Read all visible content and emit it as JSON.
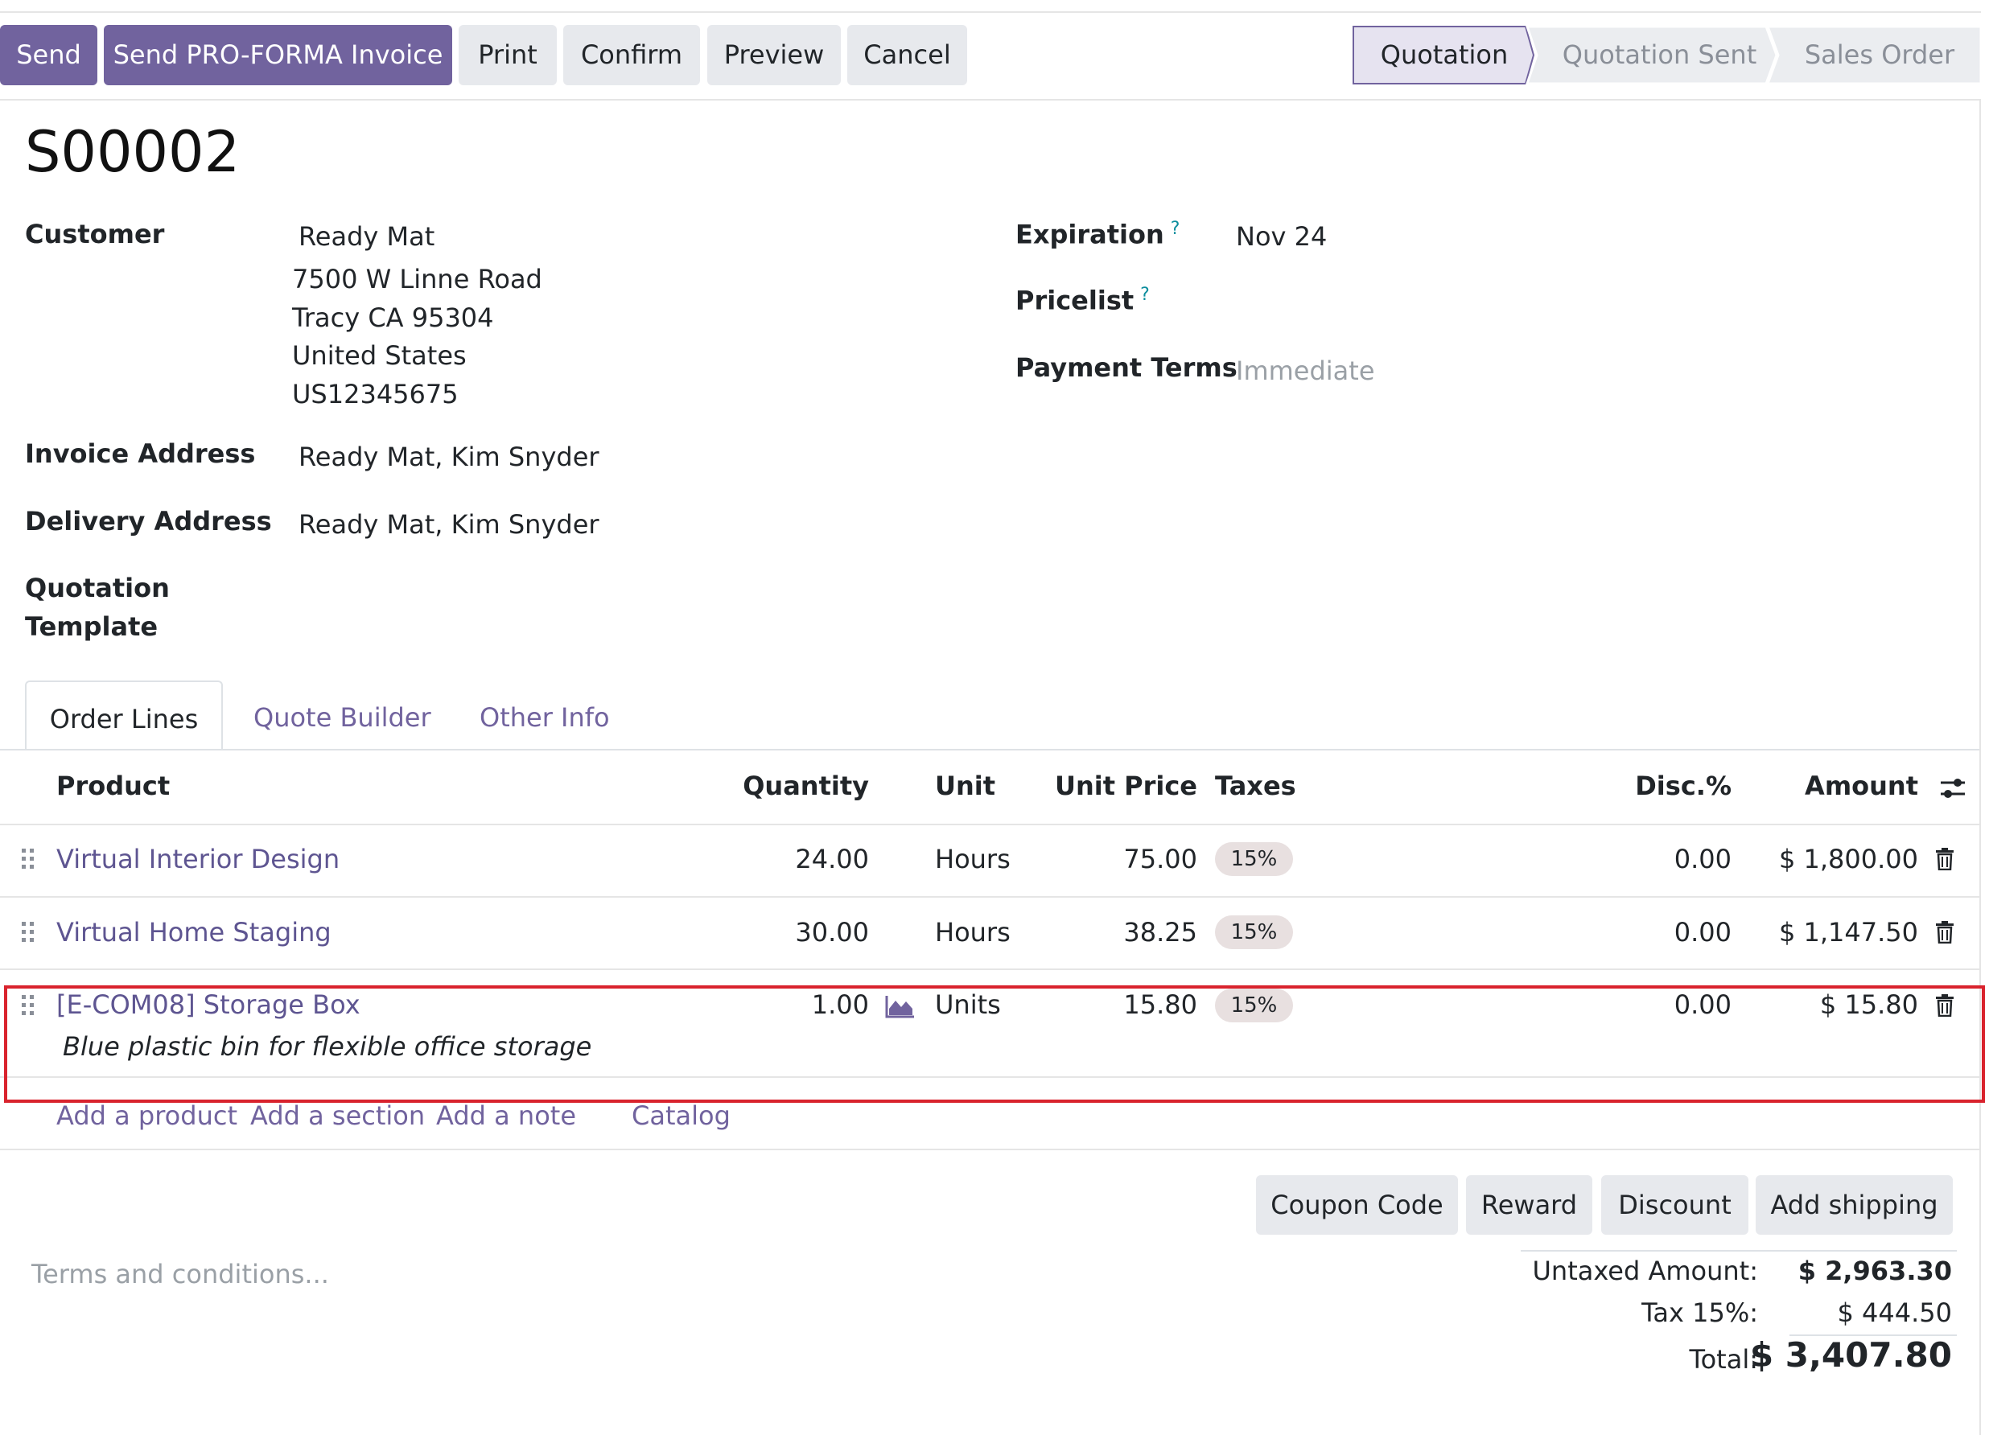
{
  "toolbar": {
    "send": "Send",
    "send_proforma": "Send PRO-FORMA Invoice",
    "print": "Print",
    "confirm": "Confirm",
    "preview": "Preview",
    "cancel": "Cancel"
  },
  "statusbar": {
    "quotation": "Quotation",
    "quotation_sent": "Quotation Sent",
    "sales_order": "Sales Order"
  },
  "record": {
    "title": "S00002",
    "customer_label": "Customer",
    "customer_name": "Ready Mat",
    "customer_address": [
      "7500 W Linne Road",
      "Tracy CA 95304",
      "United States",
      "US12345675"
    ],
    "invoice_address_label": "Invoice Address",
    "invoice_address": "Ready Mat, Kim Snyder",
    "delivery_address_label": "Delivery Address",
    "delivery_address": "Ready Mat, Kim Snyder",
    "quotation_template_label_1": "Quotation",
    "quotation_template_label_2": "Template",
    "expiration_label": "Expiration",
    "expiration_value": "Nov 24",
    "pricelist_label": "Pricelist",
    "payment_terms_label": "Payment Terms",
    "payment_terms_placeholder": "Immediate",
    "help_mark": "?"
  },
  "tabs": {
    "order_lines": "Order Lines",
    "quote_builder": "Quote Builder",
    "other_info": "Other Info"
  },
  "table": {
    "headers": {
      "product": "Product",
      "quantity": "Quantity",
      "unit": "Unit",
      "unit_price": "Unit Price",
      "taxes": "Taxes",
      "discount": "Disc.%",
      "amount": "Amount"
    },
    "rows": [
      {
        "product": "Virtual Interior Design",
        "quantity": "24.00",
        "unit": "Hours",
        "unit_price": "75.00",
        "tax": "15%",
        "discount": "0.00",
        "amount": "$ 1,800.00"
      },
      {
        "product": "Virtual Home Staging",
        "quantity": "30.00",
        "unit": "Hours",
        "unit_price": "38.25",
        "tax": "15%",
        "discount": "0.00",
        "amount": "$ 1,147.50"
      },
      {
        "product": "[E-COM08] Storage Box",
        "description": "Blue plastic bin for flexible office storage",
        "quantity": "1.00",
        "unit": "Units",
        "unit_price": "15.80",
        "tax": "15%",
        "discount": "0.00",
        "amount": "$ 15.80"
      }
    ],
    "add_product": "Add a product",
    "add_section": "Add a section",
    "add_note": "Add a note",
    "catalog": "Catalog"
  },
  "actions": {
    "coupon_code": "Coupon Code",
    "reward": "Reward",
    "discount": "Discount",
    "add_shipping": "Add shipping"
  },
  "terms_placeholder": "Terms and conditions...",
  "totals": {
    "untaxed_label": "Untaxed Amount:",
    "untaxed_value": "$ 2,963.30",
    "tax_label": "Tax 15%:",
    "tax_value": "$ 444.50",
    "total_label": "Total:",
    "total_value": "$ 3,407.80"
  },
  "colors": {
    "primary": "#71639e",
    "link": "#5e5591",
    "selection": "#d9232d"
  }
}
